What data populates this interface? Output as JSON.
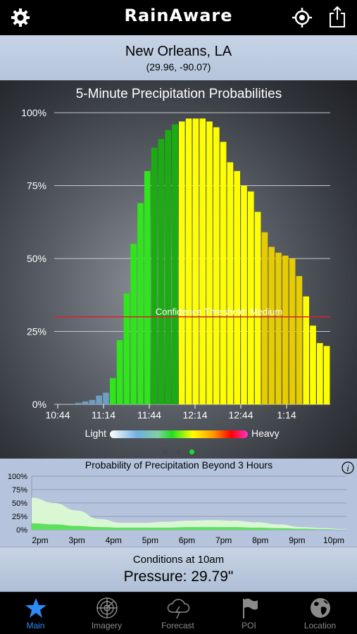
{
  "header": {
    "title": "RainAware",
    "icons": [
      "gear-icon",
      "location-target-icon",
      "share-icon"
    ]
  },
  "location": {
    "city": "New Orleans, LA",
    "coords": "(29.96, -90.07)"
  },
  "chart_data": [
    {
      "type": "bar",
      "title": "5-Minute Precipitation Probabilities",
      "y_ticks": [
        "100%",
        "75%",
        "50%",
        "25%",
        "0%"
      ],
      "x_ticks": [
        "10:44",
        "11:14",
        "11:44",
        "12:14",
        "12:44",
        "1:14"
      ],
      "ylim": [
        0,
        100
      ],
      "values": [
        0,
        0,
        0,
        0.5,
        1,
        1.5,
        3,
        4,
        9,
        22,
        38,
        55,
        69,
        80,
        88,
        91,
        94,
        96,
        97,
        98,
        98,
        98,
        97,
        95,
        90,
        83,
        80,
        75,
        73,
        66,
        59,
        54,
        52,
        51,
        50,
        44,
        37,
        27,
        21,
        20
      ],
      "bar_colors": [
        "#6f9ec2",
        "#6f9ec2",
        "#6f9ec2",
        "#6f9ec2",
        "#6f9ec2",
        "#6f9ec2",
        "#6f9ec2",
        "#6f9ec2",
        "#2ee61a",
        "#2ee61a",
        "#2ee61a",
        "#2ee61a",
        "#2ee61a",
        "#2ee61a",
        "#1aad10",
        "#1aad10",
        "#1aad10",
        "#1aad10",
        "#ffff00",
        "#ffff00",
        "#ffff00",
        "#ffff00",
        "#ffff00",
        "#ffff00",
        "#ffff00",
        "#ffff00",
        "#ffff00",
        "#ffff00",
        "#ffff00",
        "#ffff00",
        "#e6cc00",
        "#e6cc00",
        "#e6cc00",
        "#e6cc00",
        "#e6cc00",
        "#e6cc00",
        "#ffff00",
        "#ffff00",
        "#ffff00",
        "#ffff00"
      ],
      "threshold": {
        "value": 30,
        "label": "Confidence Threshold: Medium",
        "color": "#e02020"
      },
      "legend": {
        "light_label": "Light",
        "heavy_label": "Heavy"
      },
      "grid": true
    },
    {
      "type": "area",
      "title": "Probability of Precipitation Beyond 3 Hours",
      "y_ticks": [
        "100%",
        "75%",
        "50%",
        "25%",
        "0%"
      ],
      "x_ticks": [
        "2pm",
        "3pm",
        "4pm",
        "5pm",
        "6pm",
        "7pm",
        "8pm",
        "9pm",
        "10pm"
      ],
      "ylim": [
        0,
        100
      ],
      "series": [
        {
          "color": "#d9f7d3",
          "values": [
            60,
            50,
            36,
            20,
            13,
            13,
            15,
            17,
            18,
            17,
            14,
            10,
            5,
            3,
            1
          ]
        },
        {
          "color": "#5de05a",
          "values": [
            12,
            10,
            7,
            5,
            4,
            4,
            4,
            5,
            5,
            5,
            4,
            3,
            2,
            1,
            0
          ]
        }
      ]
    }
  ],
  "conditions": {
    "label": "Conditions at 10am",
    "value": "Pressure: 29.79\""
  },
  "tabs": [
    {
      "label": "Main",
      "icon": "star-icon",
      "active": true
    },
    {
      "label": "Imagery",
      "icon": "radar-icon",
      "active": false
    },
    {
      "label": "Forecast",
      "icon": "storm-cloud-icon",
      "active": false
    },
    {
      "label": "POI",
      "icon": "flag-icon",
      "active": false
    },
    {
      "label": "Location",
      "icon": "globe-icon",
      "active": false
    }
  ]
}
